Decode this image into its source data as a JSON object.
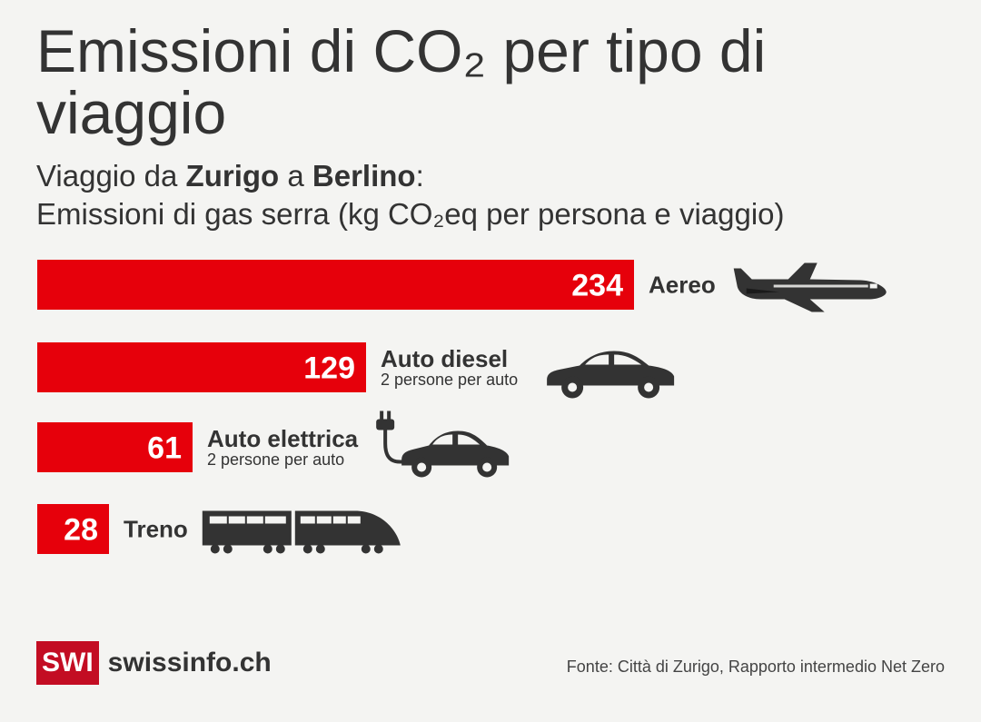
{
  "title": "Emissioni di CO₂ per tipo di viaggio",
  "subtitle": {
    "prefix": "Viaggio da ",
    "origin": "Zurigo",
    "middle": " a ",
    "destination": "Berlino",
    "suffix": ":",
    "line2": "Emissioni di gas serra (kg CO₂eq per persona e viaggio)"
  },
  "colors": {
    "bar": "#e6000b",
    "text": "#333333",
    "background": "#f4f4f2",
    "logo": "#c30d23"
  },
  "chart_data": {
    "type": "bar",
    "orientation": "horizontal",
    "categories": [
      "Aereo",
      "Auto diesel",
      "Auto elettrica",
      "Treno"
    ],
    "sublabels": [
      "",
      "2 persone per auto",
      "2 persone per auto",
      ""
    ],
    "icons": [
      "airplane-icon",
      "car-icon",
      "electric-car-icon",
      "train-icon"
    ],
    "values": [
      234,
      129,
      61,
      28
    ],
    "xlim": [
      0,
      234
    ],
    "grid": false,
    "legend": "none"
  },
  "footer": {
    "logo_mark": "SWI",
    "logo_text": "swissinfo.ch",
    "source": "Fonte: Città di Zurigo, Rapporto intermedio Net Zero"
  }
}
